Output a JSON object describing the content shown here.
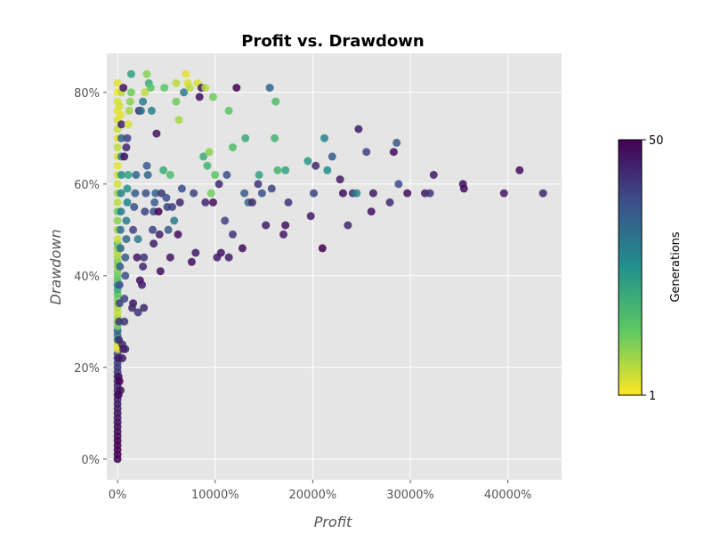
{
  "chart_data": {
    "type": "scatter",
    "title": "Profit vs. Drawdown",
    "xlabel": "Profit",
    "ylabel": "Drawdown",
    "xlim": [
      -1100,
      45500
    ],
    "ylim": [
      -4.5,
      88.5
    ],
    "x_ticks": [
      0,
      10000,
      20000,
      30000,
      40000
    ],
    "x_tick_labels": [
      "0%",
      "10000%",
      "20000%",
      "30000%",
      "40000%"
    ],
    "y_ticks": [
      0,
      20,
      40,
      60,
      80
    ],
    "y_tick_labels": [
      "0%",
      "20%",
      "40%",
      "60%",
      "80%"
    ],
    "grid": true,
    "colorbar": {
      "label": "Generations",
      "min": 1,
      "max": 50,
      "min_label": "1",
      "max_label": "50",
      "colormap": "viridis"
    },
    "points": [
      [
        0,
        0,
        50
      ],
      [
        0,
        1,
        50
      ],
      [
        0,
        2,
        50
      ],
      [
        0,
        3,
        50
      ],
      [
        0,
        4,
        50
      ],
      [
        0,
        5,
        49
      ],
      [
        0,
        6,
        49
      ],
      [
        0,
        7,
        48
      ],
      [
        0,
        8,
        48
      ],
      [
        0,
        9,
        47
      ],
      [
        0,
        10,
        47
      ],
      [
        0,
        11,
        46
      ],
      [
        0,
        12,
        46
      ],
      [
        0,
        13,
        45
      ],
      [
        0,
        14,
        45
      ],
      [
        0,
        15,
        44
      ],
      [
        0,
        16,
        44
      ],
      [
        0,
        17,
        43
      ],
      [
        0,
        18,
        43
      ],
      [
        0,
        19,
        42
      ],
      [
        0,
        20,
        42
      ],
      [
        0,
        21,
        41
      ],
      [
        0,
        22,
        40
      ],
      [
        0,
        23,
        40
      ],
      [
        0,
        24,
        3
      ],
      [
        0,
        25,
        3
      ],
      [
        0,
        26,
        25
      ],
      [
        0,
        27,
        30
      ],
      [
        0,
        28,
        35
      ],
      [
        0,
        29,
        12
      ],
      [
        0,
        30,
        10
      ],
      [
        0,
        31,
        8
      ],
      [
        0,
        32,
        5
      ],
      [
        0,
        33,
        7
      ],
      [
        0,
        34,
        9
      ],
      [
        0,
        35,
        11
      ],
      [
        0,
        36,
        14
      ],
      [
        0,
        37,
        20
      ],
      [
        0,
        38,
        28
      ],
      [
        0,
        39,
        15
      ],
      [
        0,
        40,
        13
      ],
      [
        0,
        41,
        11
      ],
      [
        0,
        42,
        9
      ],
      [
        0,
        43,
        12
      ],
      [
        0,
        44,
        8
      ],
      [
        0,
        45,
        6
      ],
      [
        0,
        46,
        10
      ],
      [
        0,
        47,
        14
      ],
      [
        0,
        48,
        5
      ],
      [
        0,
        50,
        8
      ],
      [
        0,
        52,
        10
      ],
      [
        0,
        54,
        12
      ],
      [
        0,
        56,
        6
      ],
      [
        0,
        58,
        8
      ],
      [
        0,
        60,
        4
      ],
      [
        0,
        62,
        5
      ],
      [
        0,
        64,
        3
      ],
      [
        0,
        66,
        4
      ],
      [
        0,
        68,
        6
      ],
      [
        0,
        70,
        3
      ],
      [
        0,
        72,
        5
      ],
      [
        0,
        74,
        4
      ],
      [
        0,
        76,
        3
      ],
      [
        0,
        78,
        4
      ],
      [
        0,
        80,
        2
      ],
      [
        0,
        82,
        3
      ],
      [
        100,
        14,
        48
      ],
      [
        100,
        18,
        47
      ],
      [
        100,
        22,
        46
      ],
      [
        150,
        26,
        44
      ],
      [
        150,
        30,
        42
      ],
      [
        200,
        34,
        40
      ],
      [
        200,
        38,
        38
      ],
      [
        250,
        42,
        36
      ],
      [
        300,
        46,
        34
      ],
      [
        300,
        50,
        32
      ],
      [
        350,
        54,
        30
      ],
      [
        350,
        58,
        28
      ],
      [
        400,
        62,
        26
      ],
      [
        400,
        66,
        30
      ],
      [
        400,
        70,
        34
      ],
      [
        400,
        73,
        45
      ],
      [
        300,
        75,
        3
      ],
      [
        200,
        77,
        4
      ],
      [
        400,
        80,
        6
      ],
      [
        600,
        81,
        47
      ],
      [
        500,
        25,
        44
      ],
      [
        700,
        30,
        42
      ],
      [
        700,
        35,
        40
      ],
      [
        800,
        40,
        38
      ],
      [
        800,
        44,
        36
      ],
      [
        900,
        48,
        33
      ],
      [
        900,
        52,
        30
      ],
      [
        1000,
        56,
        28
      ],
      [
        1000,
        59,
        25
      ],
      [
        1100,
        62,
        22
      ],
      [
        700,
        66,
        47
      ],
      [
        900,
        68,
        44
      ],
      [
        1000,
        70,
        40
      ],
      [
        1100,
        73,
        4
      ],
      [
        1200,
        76,
        8
      ],
      [
        1300,
        78,
        10
      ],
      [
        1400,
        80,
        12
      ],
      [
        1400,
        84,
        22
      ],
      [
        1600,
        50,
        40
      ],
      [
        1700,
        55,
        38
      ],
      [
        1800,
        58,
        36
      ],
      [
        1900,
        62,
        34
      ],
      [
        1600,
        34,
        46
      ],
      [
        1500,
        33,
        44
      ],
      [
        2000,
        44,
        47
      ],
      [
        2100,
        48,
        30
      ],
      [
        2200,
        76,
        45
      ],
      [
        2300,
        39,
        48
      ],
      [
        2500,
        38,
        46
      ],
      [
        2600,
        42,
        44
      ],
      [
        2700,
        44,
        42
      ],
      [
        2800,
        54,
        40
      ],
      [
        2900,
        58,
        38
      ],
      [
        3000,
        64,
        36
      ],
      [
        3100,
        62,
        34
      ],
      [
        2400,
        76,
        32
      ],
      [
        2600,
        78,
        30
      ],
      [
        2800,
        80,
        6
      ],
      [
        3000,
        84,
        10
      ],
      [
        3200,
        82,
        20
      ],
      [
        3400,
        81,
        14
      ],
      [
        3500,
        76,
        28
      ],
      [
        3600,
        50,
        40
      ],
      [
        3700,
        54,
        38
      ],
      [
        3800,
        56,
        36
      ],
      [
        3900,
        58,
        34
      ],
      [
        4000,
        71,
        47
      ],
      [
        4200,
        54,
        50
      ],
      [
        4300,
        49,
        45
      ],
      [
        4400,
        41,
        48
      ],
      [
        4500,
        58,
        42
      ],
      [
        4700,
        63,
        20
      ],
      [
        4800,
        81,
        14
      ],
      [
        5000,
        57,
        38
      ],
      [
        5200,
        50,
        36
      ],
      [
        5400,
        44,
        47
      ],
      [
        5600,
        55,
        40
      ],
      [
        5800,
        52,
        30
      ],
      [
        6000,
        82,
        6
      ],
      [
        6200,
        49,
        48
      ],
      [
        6400,
        56,
        44
      ],
      [
        6600,
        59,
        38
      ],
      [
        6800,
        80,
        30
      ],
      [
        7000,
        84,
        3
      ],
      [
        7200,
        82,
        4
      ],
      [
        7400,
        81,
        6
      ],
      [
        7600,
        43,
        48
      ],
      [
        7800,
        58,
        40
      ],
      [
        8000,
        45,
        46
      ],
      [
        8200,
        82,
        4
      ],
      [
        8400,
        79,
        48
      ],
      [
        8600,
        81,
        47
      ],
      [
        8800,
        66,
        20
      ],
      [
        9000,
        56,
        44
      ],
      [
        9200,
        64,
        18
      ],
      [
        9400,
        67,
        10
      ],
      [
        9600,
        58,
        12
      ],
      [
        9800,
        56,
        48
      ],
      [
        10000,
        62,
        14
      ],
      [
        10200,
        44,
        46
      ],
      [
        10400,
        60,
        44
      ],
      [
        10600,
        45,
        47
      ],
      [
        11000,
        52,
        40
      ],
      [
        11200,
        62,
        38
      ],
      [
        11400,
        44,
        46
      ],
      [
        11800,
        49,
        42
      ],
      [
        12200,
        81,
        50
      ],
      [
        12800,
        46,
        48
      ],
      [
        13000,
        58,
        36
      ],
      [
        13400,
        56,
        34
      ],
      [
        13800,
        56,
        44
      ],
      [
        14400,
        60,
        42
      ],
      [
        14800,
        58,
        38
      ],
      [
        15200,
        51,
        46
      ],
      [
        15600,
        81,
        34
      ],
      [
        15800,
        59,
        40
      ],
      [
        16200,
        78,
        16
      ],
      [
        16400,
        63,
        18
      ],
      [
        17000,
        49,
        46
      ],
      [
        17200,
        51,
        48
      ],
      [
        17500,
        56,
        42
      ],
      [
        19800,
        53,
        46
      ],
      [
        20100,
        58,
        40
      ],
      [
        20300,
        64,
        44
      ],
      [
        21000,
        46,
        50
      ],
      [
        21200,
        70,
        28
      ],
      [
        21500,
        63,
        26
      ],
      [
        22800,
        61,
        46
      ],
      [
        23100,
        58,
        48
      ],
      [
        23600,
        51,
        44
      ],
      [
        24100,
        58,
        42
      ],
      [
        24500,
        58,
        28
      ],
      [
        24700,
        72,
        46
      ],
      [
        25500,
        67,
        40
      ],
      [
        26000,
        54,
        48
      ],
      [
        26200,
        58,
        46
      ],
      [
        27900,
        56,
        44
      ],
      [
        28300,
        67,
        48
      ],
      [
        28600,
        69,
        36
      ],
      [
        28800,
        60,
        38
      ],
      [
        29700,
        58,
        48
      ],
      [
        31500,
        58,
        46
      ],
      [
        32000,
        58,
        42
      ],
      [
        32400,
        62,
        46
      ],
      [
        35400,
        60,
        48
      ],
      [
        35500,
        59,
        48
      ],
      [
        39600,
        58,
        46
      ],
      [
        41200,
        63,
        48
      ],
      [
        43600,
        58,
        44
      ],
      [
        200,
        17,
        50
      ],
      [
        300,
        15,
        48
      ],
      [
        500,
        22,
        46
      ],
      [
        600,
        24,
        48
      ],
      [
        800,
        24,
        44
      ],
      [
        2100,
        32,
        42
      ],
      [
        2700,
        33,
        44
      ],
      [
        3700,
        47,
        46
      ],
      [
        5100,
        55,
        40
      ],
      [
        5400,
        62,
        16
      ],
      [
        6000,
        78,
        12
      ],
      [
        6300,
        74,
        8
      ],
      [
        9000,
        81,
        6
      ],
      [
        9800,
        79,
        12
      ],
      [
        11400,
        76,
        14
      ],
      [
        11800,
        68,
        16
      ],
      [
        13100,
        70,
        20
      ],
      [
        14500,
        62,
        22
      ],
      [
        16100,
        70,
        18
      ],
      [
        17200,
        63,
        22
      ],
      [
        19500,
        65,
        24
      ],
      [
        22000,
        66,
        36
      ]
    ]
  }
}
